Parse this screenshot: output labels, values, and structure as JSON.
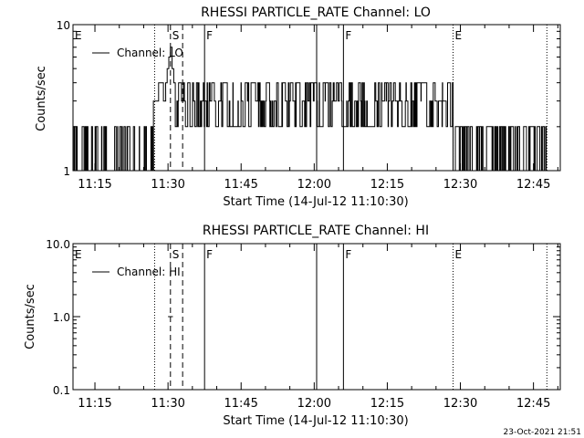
{
  "timestamp": "23-Oct-2021 21:51",
  "chart_data": [
    {
      "type": "line",
      "title": "RHESSI PARTICLE_RATE Channel: LO",
      "xlabel": "Start Time (14-Jul-12 11:10:30)",
      "ylabel": "Counts/sec",
      "yscale": "log",
      "ylim": [
        1,
        10
      ],
      "xlim": [
        "11:10:30",
        "12:50:30"
      ],
      "y_tick_labels": [
        "1",
        "10"
      ],
      "x_tick_labels": [
        "11:15",
        "11:30",
        "11:45",
        "12:00",
        "12:15",
        "12:30",
        "12:45"
      ],
      "legend": {
        "label": "Channel: LO",
        "position": "top-left"
      },
      "markers": [
        {
          "time": "11:10:30",
          "label": "E",
          "style": "dotted"
        },
        {
          "time": "11:27:15",
          "label": "",
          "style": "dotted"
        },
        {
          "time": "11:30:30",
          "label": "S",
          "style": "dashed"
        },
        {
          "time": "11:33:00",
          "label": "",
          "style": "dashed"
        },
        {
          "time": "11:37:30",
          "label": "F",
          "style": "solid"
        },
        {
          "time": "12:00:30",
          "label": "",
          "style": "solid"
        },
        {
          "time": "12:06:00",
          "label": "F",
          "style": "solid"
        },
        {
          "time": "12:28:30",
          "label": "E",
          "style": "dotted"
        },
        {
          "time": "12:47:45",
          "label": "",
          "style": "dotted"
        }
      ],
      "series": [
        {
          "name": "Channel: LO",
          "segments": [
            {
              "t0": "11:10:30",
              "t1": "11:27:00",
              "levels": [
                1,
                2
              ],
              "pattern": "toggle"
            },
            {
              "t0": "11:27:00",
              "t1": "11:29:30",
              "levels": [
                3,
                3,
                4,
                4,
                3
              ]
            },
            {
              "t0": "11:29:30",
              "t1": "11:31:30",
              "levels": [
                4,
                5,
                6,
                7,
                5,
                4
              ]
            },
            {
              "t0": "11:31:30",
              "t1": "12:28:30",
              "levels": [
                2,
                3,
                4
              ],
              "pattern": "noisy"
            },
            {
              "t0": "12:28:30",
              "t1": "12:47:45",
              "levels": [
                1,
                2
              ],
              "pattern": "toggle"
            }
          ]
        }
      ]
    },
    {
      "type": "line",
      "title": "RHESSI PARTICLE_RATE Channel: HI",
      "xlabel": "Start Time (14-Jul-12 11:10:30)",
      "ylabel": "Counts/sec",
      "yscale": "log",
      "ylim": [
        0.1,
        10
      ],
      "xlim": [
        "11:10:30",
        "12:50:30"
      ],
      "y_tick_labels": [
        "0.1",
        "1.0",
        "10.0"
      ],
      "x_tick_labels": [
        "11:15",
        "11:30",
        "11:45",
        "12:00",
        "12:15",
        "12:30",
        "12:45"
      ],
      "legend": {
        "label": "Channel: HI",
        "position": "top-left"
      },
      "markers": [
        {
          "time": "11:10:30",
          "label": "E",
          "style": "dotted"
        },
        {
          "time": "11:27:15",
          "label": "",
          "style": "dotted"
        },
        {
          "time": "11:30:30",
          "label": "S",
          "style": "dashed"
        },
        {
          "time": "11:33:00",
          "label": "",
          "style": "dashed"
        },
        {
          "time": "11:37:30",
          "label": "F",
          "style": "solid"
        },
        {
          "time": "12:00:30",
          "label": "",
          "style": "solid"
        },
        {
          "time": "12:06:00",
          "label": "F",
          "style": "solid"
        },
        {
          "time": "12:28:30",
          "label": "E",
          "style": "dotted"
        },
        {
          "time": "12:47:45",
          "label": "",
          "style": "dotted"
        }
      ],
      "series": [
        {
          "name": "Channel: HI",
          "points": [
            {
              "t0": "11:30:00",
              "t1": "11:31:00",
              "value": 1.0
            }
          ]
        }
      ]
    }
  ]
}
